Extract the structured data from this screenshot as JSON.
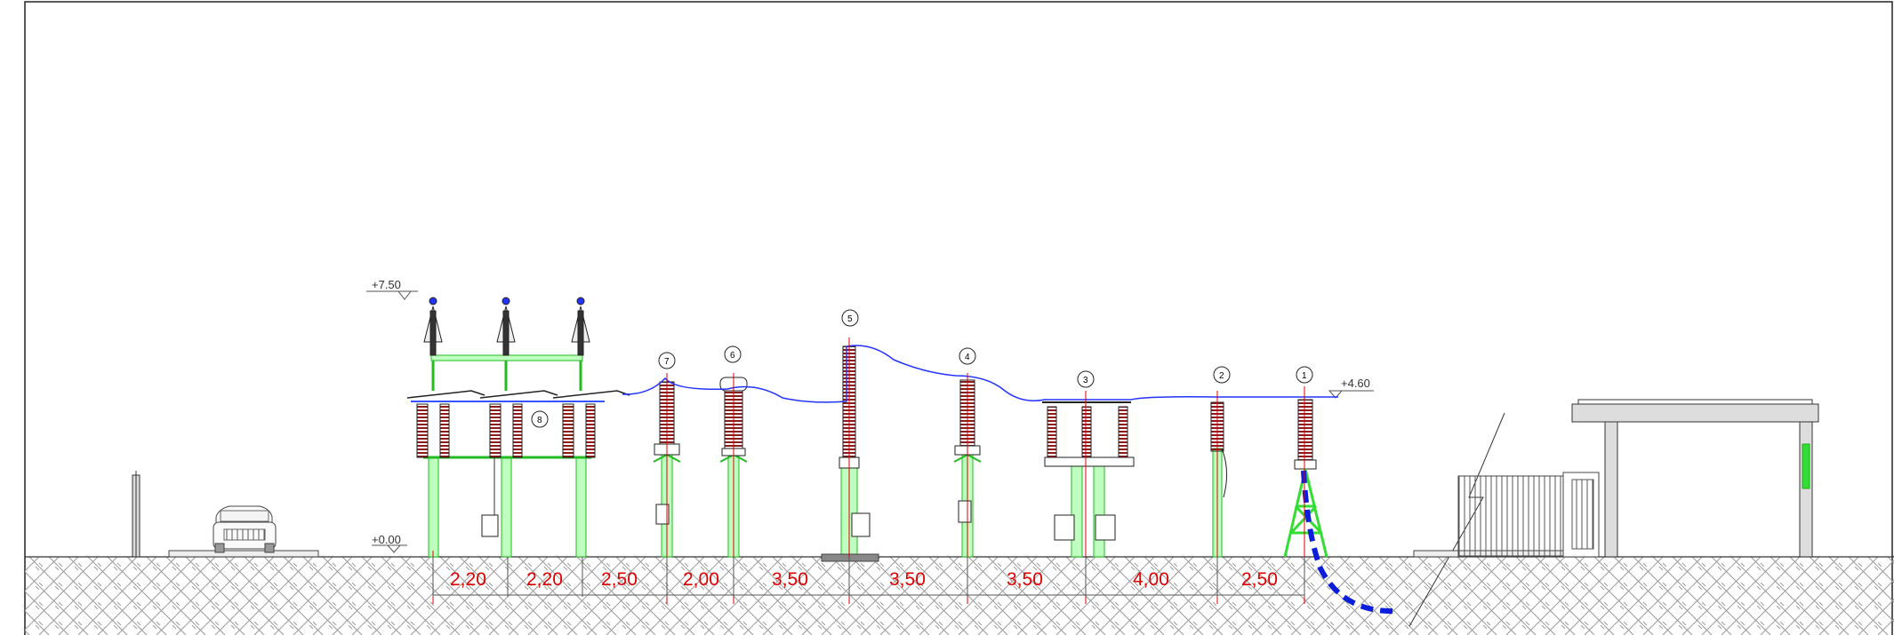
{
  "drawing": {
    "colors": {
      "support": "#33dd33",
      "conductor": "#2233ff",
      "dimension": "#e00000",
      "insulator": "#8a1c1c",
      "outline": "#222222",
      "ground_hatch": "#9a9a9a",
      "cable": "#0a1edc"
    },
    "levels": {
      "top": "+7.50",
      "busbar": "+4.60",
      "ground": "+0.00"
    },
    "dimensions": [
      "2,20",
      "2,20",
      "2,50",
      "2,00",
      "3,50",
      "3,50",
      "3,50",
      "4,00",
      "2,50"
    ],
    "equipment_numbers": [
      "1",
      "2",
      "3",
      "4",
      "5",
      "6",
      "7",
      "8"
    ]
  }
}
